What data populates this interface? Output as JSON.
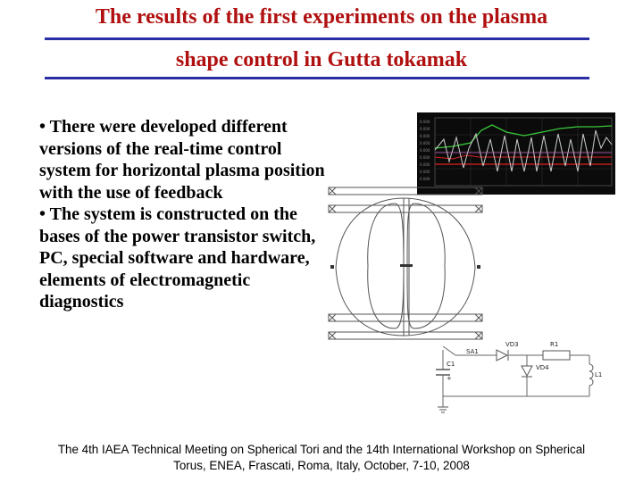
{
  "slide": {
    "title_line1": "The results of the first experiments on the plasma",
    "title_line2": "shape control in Gutta tokamak",
    "bullet1": "• There were developed different versions of the real-time control system for horizontal plasma position with the use of feedback",
    "bullet2": "• The system is constructed on the bases of the power transistor switch, PC, special software and hardware, elements of electromagnetic diagnostics",
    "footer_line1": "The 4th IAEA Technical Meeting on Spherical Tori and the 14th International Workshop on Spherical",
    "footer_line2": "Torus, ENEA, Frascati, Roma, Italy, October, 7-10, 2008",
    "colors": {
      "title": "#b01010",
      "rule": "#2b2fa6"
    }
  },
  "circuit": {
    "vd3": "VD3",
    "r1": "R1",
    "sa1": "SA1",
    "c1": "C1",
    "vd4": "VD4",
    "l1": "L1",
    "plus": "+"
  }
}
